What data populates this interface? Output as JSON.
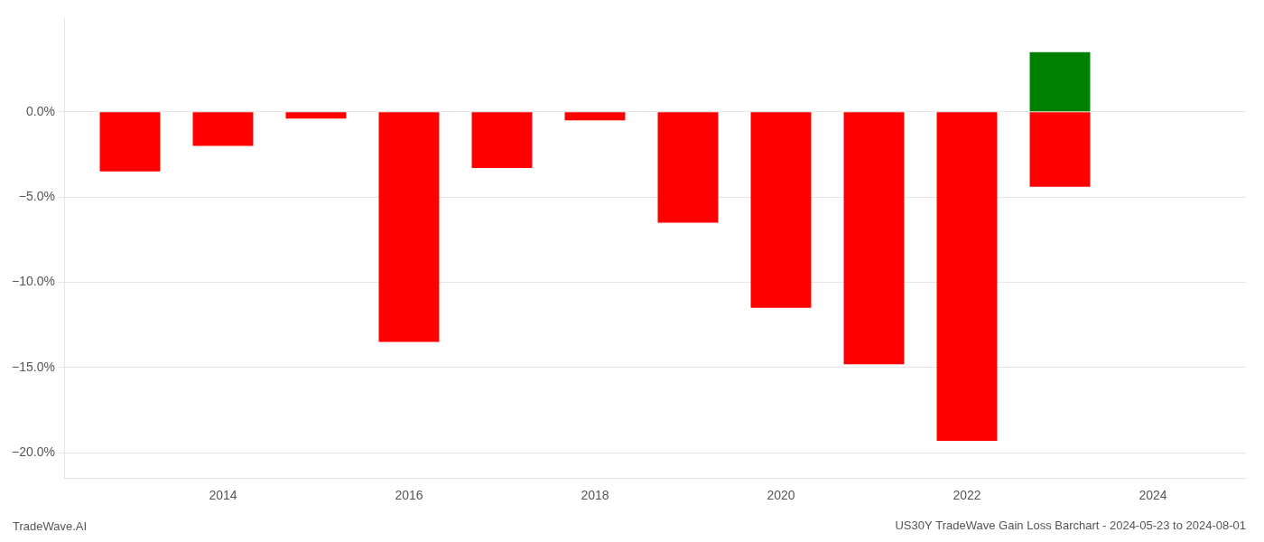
{
  "chart_data": {
    "type": "bar",
    "title": "US30Y TradeWave Gain Loss Barchart - 2024-05-23 to 2024-08-01",
    "annotations": [
      "TradeWave.AI"
    ],
    "series": [
      {
        "x": [
          2013,
          2014,
          2015,
          2016,
          2017,
          2018,
          2019,
          2020,
          2021,
          2022,
          2023
        ],
        "values": [
          -3.5,
          -2.0,
          -0.4,
          -13.5,
          -3.3,
          -0.5,
          -6.5,
          -11.5,
          -14.8,
          -19.3,
          -4.4
        ],
        "colors": [
          "#ff0000",
          "#ff0000",
          "#ff0000",
          "#ff0000",
          "#ff0000",
          "#ff0000",
          "#ff0000",
          "#ff0000",
          "#ff0000",
          "#ff0000",
          "#ff0000"
        ]
      },
      {
        "x": [
          2023
        ],
        "values": [
          3.5
        ],
        "color": "#008000"
      }
    ],
    "xlim": [
      2012.3,
      2025.0
    ],
    "xticks": [
      2014,
      2016,
      2018,
      2020,
      2022,
      2024
    ],
    "ylim": [
      -21.5,
      5.5
    ],
    "yticks": [
      {
        "value": 0.0,
        "label": "0.0%"
      },
      {
        "value": -5.0,
        "label": "−5.0%"
      },
      {
        "value": -10.0,
        "label": "−10.0%"
      },
      {
        "value": -15.0,
        "label": "−15.0%"
      },
      {
        "value": -20.0,
        "label": "−20.0%"
      }
    ],
    "grid": true
  }
}
